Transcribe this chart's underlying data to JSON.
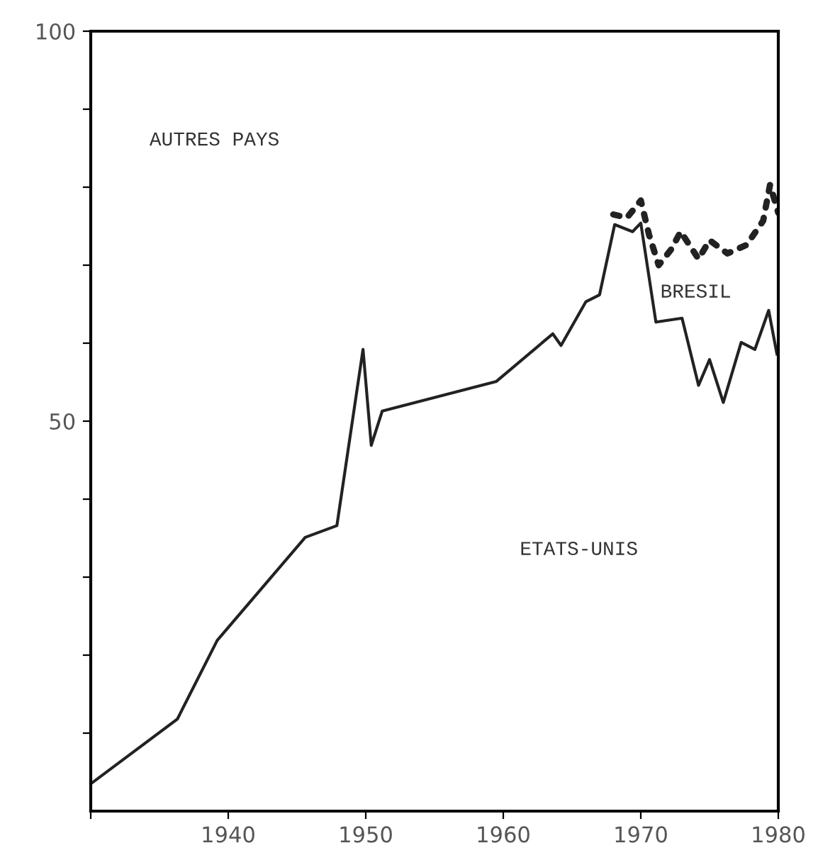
{
  "chart_data": {
    "type": "line",
    "xlim": [
      1930,
      1980
    ],
    "ylim": [
      0,
      100
    ],
    "xticks": [
      {
        "value": 1930,
        "label": null
      },
      1940,
      1950,
      1960,
      1970,
      1980
    ],
    "yticks": [
      {
        "value": 10,
        "label": null
      },
      {
        "value": 20,
        "label": null
      },
      {
        "value": 30,
        "label": null
      },
      {
        "value": 40,
        "label": null
      },
      50,
      {
        "value": 60,
        "label": null
      },
      {
        "value": 70,
        "label": null
      },
      {
        "value": 80,
        "label": null
      },
      {
        "value": 90,
        "label": null
      },
      100
    ],
    "grid": false,
    "marker": "none",
    "series": [
      {
        "color": "#222222",
        "line_style": "solid",
        "x": [
          1930,
          1936.3,
          1939.2,
          1945.6,
          1947.9,
          1949.8,
          1950.4,
          1951.2,
          1959.5,
          1963.6,
          1964.2,
          1966,
          1967,
          1968.1,
          1969.4,
          1970,
          1971.1,
          1973,
          1974.2,
          1975,
          1976,
          1977.3,
          1978.3,
          1979.3,
          1979.9
        ],
        "values": [
          3.5,
          11.8,
          21.9,
          35.1,
          36.6,
          59.2,
          46.9,
          51.3,
          55.1,
          61.2,
          59.7,
          65.3,
          66.2,
          75.2,
          74.3,
          75.4,
          62.7,
          63.2,
          54.6,
          57.9,
          52.4,
          60.1,
          59.2,
          64.2,
          58.6
        ]
      },
      {
        "color": "#222222",
        "line_style": "dotted",
        "x": [
          1968,
          1969,
          1970,
          1970.6,
          1971.3,
          1972.2,
          1972.9,
          1974.2,
          1975,
          1976.3,
          1977.7,
          1978.9,
          1979.4,
          1980
        ],
        "values": [
          76.5,
          76.1,
          78.3,
          73.9,
          70,
          72,
          74.3,
          70.8,
          73.2,
          71.5,
          72.6,
          75.7,
          80.3,
          76.7
        ]
      }
    ],
    "annotations": [
      "AUTRES PAYS",
      "BRESIL",
      "ETATS-UNIS"
    ]
  }
}
